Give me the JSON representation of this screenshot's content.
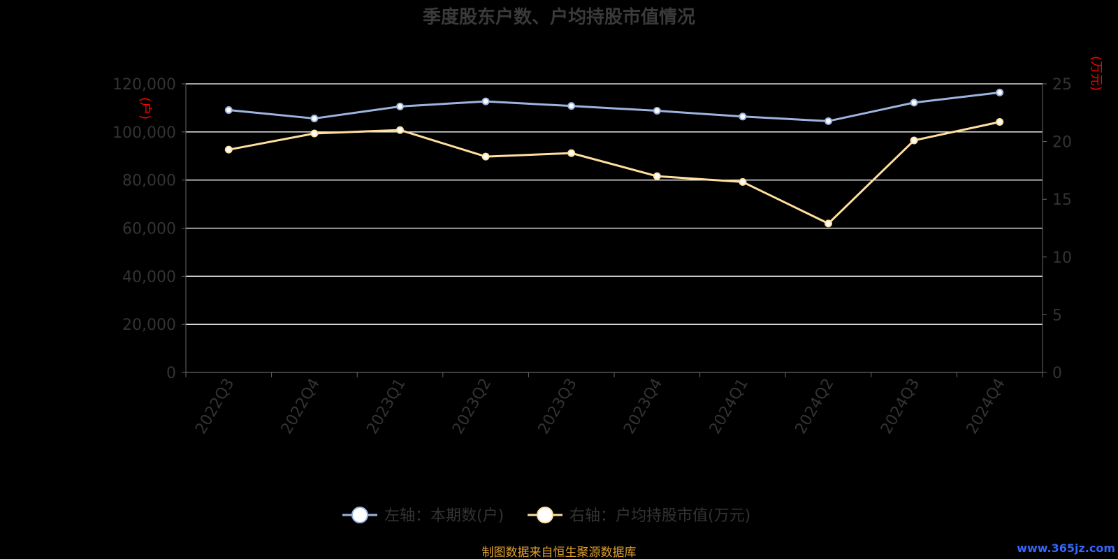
{
  "chart_data": {
    "type": "line",
    "title": "季度股东户数、户均持股市值情况",
    "left_axis_unit": "(户)",
    "right_axis_unit": "(万元)",
    "categories": [
      "2022Q3",
      "2022Q4",
      "2023Q1",
      "2023Q2",
      "2023Q3",
      "2023Q4",
      "2024Q1",
      "2024Q2",
      "2024Q3",
      "2024Q4"
    ],
    "y_left": {
      "ylim": [
        0,
        120000
      ],
      "ticks": [
        0,
        20000,
        40000,
        60000,
        80000,
        100000,
        120000
      ],
      "tick_labels": [
        "0",
        "20,000",
        "40,000",
        "60,000",
        "80,000",
        "100,000",
        "120,000"
      ]
    },
    "y_right": {
      "ylim": [
        0,
        25
      ],
      "ticks": [
        0,
        5,
        10,
        15,
        20,
        25
      ],
      "tick_labels": [
        "0",
        "5",
        "10",
        "15",
        "20",
        "25"
      ]
    },
    "series": [
      {
        "name": "左轴：本期数(户)",
        "axis": "left",
        "color": "#9db4e0",
        "values": [
          109100,
          105600,
          110600,
          112700,
          110800,
          108800,
          106400,
          104500,
          112200,
          116400
        ]
      },
      {
        "name": "右轴：户均持股市值(万元)",
        "axis": "right",
        "color": "#ffdfa0",
        "values": [
          19.3,
          20.7,
          21.0,
          18.7,
          19.0,
          17.0,
          16.5,
          12.9,
          20.1,
          21.7
        ]
      }
    ],
    "grid": true,
    "legend_position": "bottom-center",
    "source_note": "制图数据来自恒生聚源数据库",
    "watermark": "www.365jz.com",
    "colors": {
      "background": "#000000",
      "title": "#3a3a3a",
      "axis_text": "#333333",
      "grid": "#ffffff",
      "unit_label": "#ff0000",
      "source_note": "#e0a030",
      "watermark": "#3366ff"
    }
  }
}
